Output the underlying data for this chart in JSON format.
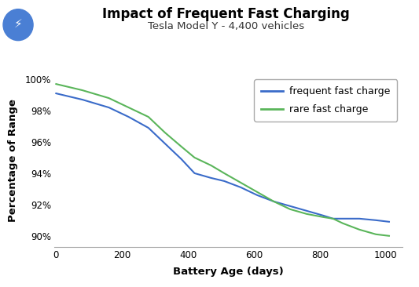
{
  "title": "Impact of Frequent Fast Charging",
  "subtitle": "Tesla Model Y - 4,400 vehicles",
  "xlabel": "Battery Age (days)",
  "ylabel": "Percentage of Range",
  "xlim": [
    -5,
    1050
  ],
  "ylim": [
    0.893,
    1.003
  ],
  "yticks": [
    0.9,
    0.92,
    0.94,
    0.96,
    0.98,
    1.0
  ],
  "xticks": [
    0,
    200,
    400,
    600,
    800,
    1000
  ],
  "frequent_x": [
    0,
    80,
    160,
    220,
    280,
    330,
    380,
    420,
    470,
    510,
    560,
    610,
    660,
    710,
    760,
    810,
    840,
    870,
    920,
    970,
    1010
  ],
  "frequent_y": [
    0.991,
    0.987,
    0.982,
    0.976,
    0.969,
    0.959,
    0.949,
    0.94,
    0.937,
    0.935,
    0.931,
    0.926,
    0.922,
    0.919,
    0.916,
    0.913,
    0.911,
    0.911,
    0.911,
    0.91,
    0.909
  ],
  "rare_x": [
    0,
    80,
    160,
    220,
    280,
    330,
    380,
    420,
    470,
    510,
    560,
    610,
    660,
    710,
    760,
    810,
    840,
    870,
    920,
    970,
    1010
  ],
  "rare_y": [
    0.997,
    0.993,
    0.988,
    0.982,
    0.976,
    0.966,
    0.957,
    0.95,
    0.945,
    0.94,
    0.934,
    0.928,
    0.922,
    0.917,
    0.914,
    0.912,
    0.911,
    0.908,
    0.904,
    0.901,
    0.9
  ],
  "frequent_color": "#3a6bc9",
  "rare_color": "#5ab55a",
  "bg_color": "#ffffff",
  "icon_bg_color": "#4a7fd4",
  "title_fontsize": 12,
  "subtitle_fontsize": 9.5,
  "axis_label_fontsize": 9.5,
  "tick_fontsize": 8.5,
  "legend_fontsize": 9
}
